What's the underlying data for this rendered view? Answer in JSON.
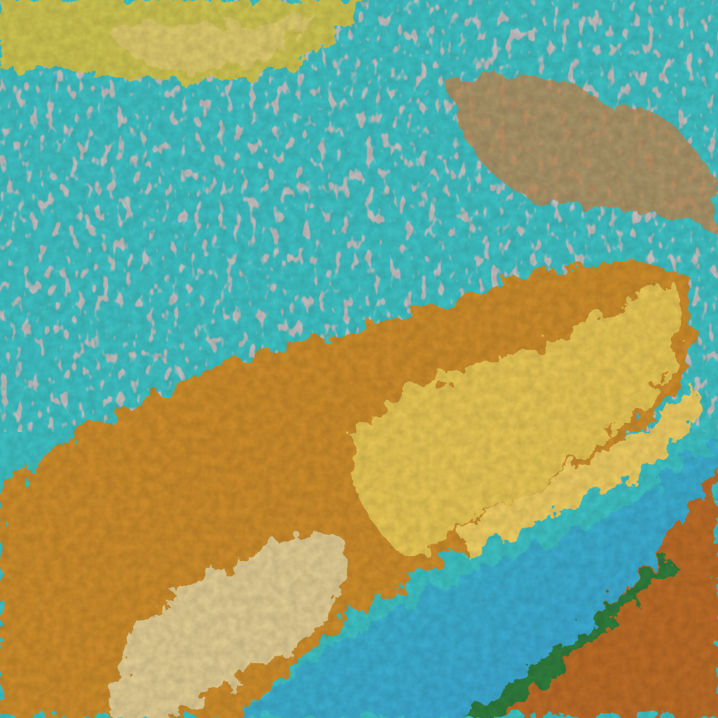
{
  "image": {
    "colors": {
      "cloud_field": "#3cbcc0",
      "clear_sky": "#3aa7c8",
      "orange_cloud": "#c98a2a",
      "yellow_cloud": "#e0c050",
      "pale_cloud": "#dcc890",
      "green_edge": "#2fd08a",
      "dark_edge": "#1a3a4a",
      "pink_speckle": "#c98a8a"
    }
  }
}
